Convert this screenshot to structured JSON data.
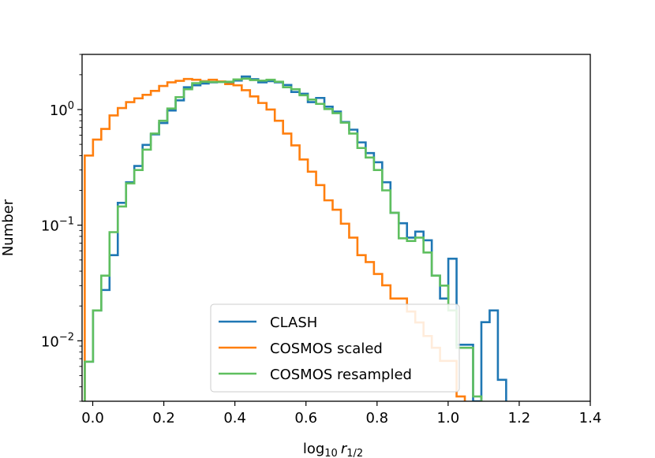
{
  "chart_data": {
    "type": "step-histogram",
    "title": "",
    "xlabel": "log10 r1/2",
    "ylabel": "Number",
    "xlim": [
      -0.03,
      1.4
    ],
    "ylim": [
      0.003,
      3.0
    ],
    "yscale": "log",
    "grid": false,
    "legend_position": "lower center",
    "x_ticks": [
      {
        "value": 0.0,
        "label": "0.0"
      },
      {
        "value": 0.2,
        "label": "0.2"
      },
      {
        "value": 0.4,
        "label": "0.4"
      },
      {
        "value": 0.6,
        "label": "0.6"
      },
      {
        "value": 0.8,
        "label": "0.8"
      },
      {
        "value": 1.0,
        "label": "1.0"
      },
      {
        "value": 1.2,
        "label": "1.2"
      },
      {
        "value": 1.4,
        "label": "1.4"
      }
    ],
    "y_ticks": [
      {
        "value": 0.01,
        "base": "10",
        "exp": "−2"
      },
      {
        "value": 0.1,
        "base": "10",
        "exp": "−1"
      },
      {
        "value": 1.0,
        "base": "10",
        "exp": "0"
      }
    ],
    "bin_start": -0.0225,
    "bin_width": 0.02325,
    "series": [
      {
        "name": "CLASH",
        "color": "#1f77b4",
        "values": [
          0.0066,
          0.0183,
          0.0275,
          0.055,
          0.156,
          0.235,
          0.325,
          0.495,
          0.61,
          0.765,
          0.98,
          1.2,
          1.56,
          1.62,
          1.68,
          1.72,
          1.74,
          1.71,
          1.78,
          1.93,
          1.83,
          1.72,
          1.76,
          1.72,
          1.63,
          1.42,
          1.37,
          1.16,
          1.26,
          1.06,
          0.96,
          0.78,
          0.67,
          0.52,
          0.42,
          0.35,
          0.235,
          0.128,
          0.104,
          0.078,
          0.088,
          0.074,
          0.0366,
          0.0232,
          0.0513,
          0.00925,
          0.00925,
          0.003,
          0.0145,
          0.0183,
          0.0046
        ]
      },
      {
        "name": "COSMOS scaled",
        "color": "#ff7f0e",
        "values": [
          0.4,
          0.55,
          0.68,
          0.89,
          1.03,
          1.16,
          1.25,
          1.34,
          1.45,
          1.6,
          1.72,
          1.77,
          1.84,
          1.81,
          1.76,
          1.81,
          1.75,
          1.66,
          1.62,
          1.47,
          1.3,
          1.14,
          1.0,
          0.8,
          0.62,
          0.49,
          0.37,
          0.29,
          0.222,
          0.164,
          0.136,
          0.103,
          0.078,
          0.055,
          0.048,
          0.0378,
          0.0302,
          0.0232,
          0.0232,
          0.0179,
          0.0144,
          0.011,
          0.0087,
          0.0067,
          0.0067,
          0.0033
        ]
      },
      {
        "name": "COSMOS resampled",
        "color": "#5fbf5f",
        "values": [
          0.0066,
          0.0183,
          0.0366,
          0.087,
          0.145,
          0.23,
          0.3,
          0.45,
          0.62,
          0.8,
          1.02,
          1.28,
          1.5,
          1.69,
          1.74,
          1.73,
          1.73,
          1.74,
          1.82,
          1.85,
          1.8,
          1.78,
          1.81,
          1.74,
          1.56,
          1.5,
          1.33,
          1.22,
          1.12,
          1.01,
          0.93,
          0.77,
          0.62,
          0.465,
          0.385,
          0.3,
          0.2,
          0.128,
          0.077,
          0.073,
          0.078,
          0.058,
          0.0366,
          0.03,
          0.0183,
          0.0087,
          0.0087,
          0.0033
        ]
      }
    ]
  }
}
